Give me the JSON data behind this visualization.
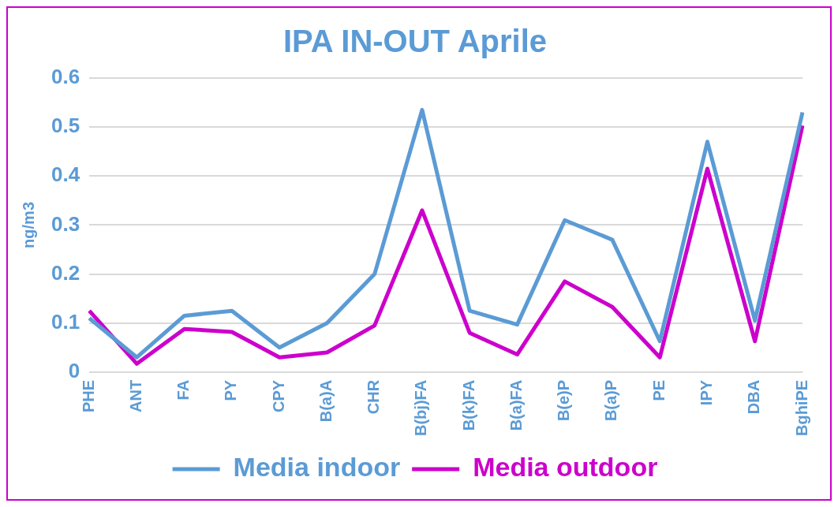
{
  "chart_data": {
    "type": "line",
    "title": "IPA IN-OUT Aprile",
    "ylabel": "ng/m3",
    "categories": [
      "PHE",
      "ANT",
      "FA",
      "PY",
      "CPY",
      "B(a)A",
      "CHR",
      "B(bj)FA",
      "B(k)FA",
      "B(a)FA",
      "B(e)P",
      "B(a)P",
      "PE",
      "IPY",
      "DBA",
      "BghiPE"
    ],
    "series": [
      {
        "name": "Media indoor",
        "color": "#5b9bd5",
        "values": [
          0.11,
          0.03,
          0.115,
          0.125,
          0.05,
          0.1,
          0.2,
          0.535,
          0.125,
          0.097,
          0.31,
          0.27,
          0.063,
          0.47,
          0.105,
          0.53
        ]
      },
      {
        "name": "Media outdoor",
        "color": "#cc00cc",
        "values": [
          0.125,
          0.017,
          0.088,
          0.082,
          0.03,
          0.04,
          0.095,
          0.33,
          0.08,
          0.036,
          0.185,
          0.133,
          0.03,
          0.415,
          0.063,
          0.503
        ]
      }
    ],
    "ylim": [
      0,
      0.6
    ],
    "yticks": [
      0,
      0.1,
      0.2,
      0.3,
      0.4,
      0.5,
      0.6
    ],
    "grid": "y",
    "legend": "bottom",
    "marker": "none",
    "line_style": "solid"
  }
}
